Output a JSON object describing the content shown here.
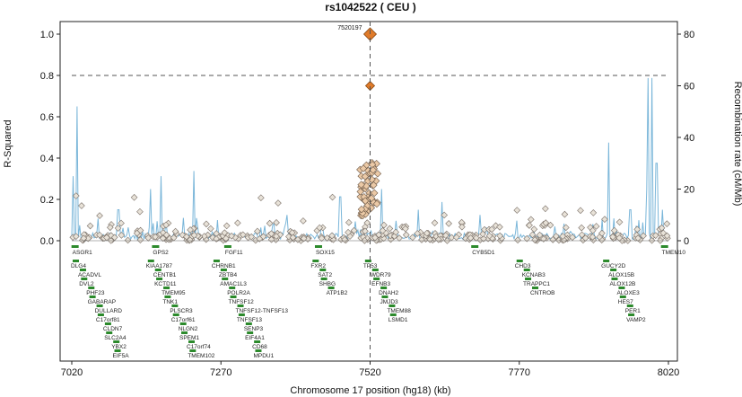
{
  "chart_data": {
    "type": "scatter",
    "title": "rs1042522 ( CEU )",
    "xlabel": "Chromosome 17 position (hg18) (kb)",
    "ylabel": "R-Squared",
    "y2label": "Recombination rate (cM/Mb)",
    "xlim": [
      7020,
      8020
    ],
    "ylim": [
      0,
      1.0
    ],
    "y2lim": [
      0,
      80
    ],
    "x_ticks": [
      7020,
      7270,
      7520,
      7770,
      8020
    ],
    "y_ticks": [
      0.0,
      0.2,
      0.4,
      0.6,
      0.8,
      1.0
    ],
    "y_tick_labels": [
      "0.0",
      "0.2",
      "0.4",
      "0.6",
      "0.8",
      "1.0"
    ],
    "y2_ticks": [
      0,
      20,
      40,
      60,
      80
    ],
    "threshold_line": 0.8,
    "lead_snp": {
      "label": "7520197",
      "x": 7520,
      "r2": 1.0
    },
    "highlight_snps": [
      {
        "x": 7520,
        "r2": 0.75
      }
    ],
    "recombination_peaks": [
      {
        "x": 7022,
        "rate": 25
      },
      {
        "x": 7029,
        "rate": 52
      },
      {
        "x": 7098,
        "rate": 12
      },
      {
        "x": 7152,
        "rate": 20
      },
      {
        "x": 7170,
        "rate": 25
      },
      {
        "x": 7225,
        "rate": 27
      },
      {
        "x": 7265,
        "rate": 8
      },
      {
        "x": 7380,
        "rate": 10
      },
      {
        "x": 7470,
        "rate": 17
      },
      {
        "x": 7540,
        "rate": 20
      },
      {
        "x": 7600,
        "rate": 12
      },
      {
        "x": 7640,
        "rate": 15
      },
      {
        "x": 7705,
        "rate": 10
      },
      {
        "x": 7920,
        "rate": 38
      },
      {
        "x": 7956,
        "rate": 12
      },
      {
        "x": 7983,
        "rate": 20
      },
      {
        "x": 7985,
        "rate": 63
      },
      {
        "x": 7992,
        "rate": 63
      },
      {
        "x": 8000,
        "rate": 30
      },
      {
        "x": 8010,
        "rate": 12
      }
    ],
    "genes_row1": [
      "ASGR1",
      "GPS2",
      "FGF11",
      "SOX15",
      "CYB5D1",
      "TMEM10"
    ],
    "genes": [
      "DLG4",
      "ACADVL",
      "DVL2",
      "PHF23",
      "GABARAP",
      "DULLARD",
      "C17orf81",
      "CLDN7",
      "SLC2A4",
      "YBX2",
      "EIF5A",
      "KIAA1787",
      "CENTB1",
      "KCTD11",
      "TMEM95",
      "TNK1",
      "PLSCR3",
      "C17orf61",
      "NLGN2",
      "SPEM1",
      "C17orf74",
      "TMEM102",
      "CHRNB1",
      "ZBTB4",
      "AMAC1L3",
      "POLR2A",
      "TNFSF12",
      "TNFSF12-TNFSF13",
      "TNFSF13",
      "SENP3",
      "EIF4A1",
      "CD68",
      "MPDU1",
      "FXR2",
      "SAT2",
      "SHBG",
      "ATP1B2",
      "TP53",
      "WDR79",
      "EFNB3",
      "DNAH2",
      "JMJD3",
      "TMEM88",
      "LSMD1",
      "CHD3",
      "KCNAB3",
      "TRAPPC1",
      "CNTROB",
      "GUCY2D",
      "ALOX15B",
      "ALOX12B",
      "ALOXE3",
      "HES7",
      "PER1",
      "VAMP2"
    ]
  }
}
